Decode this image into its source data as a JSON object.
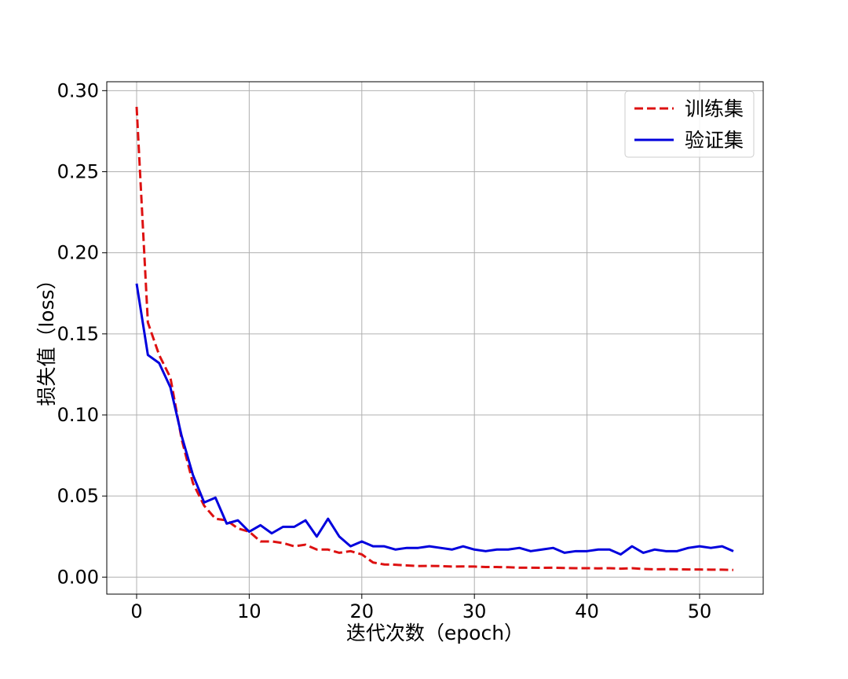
{
  "chart_data": {
    "type": "line",
    "title": "",
    "xlabel": "迭代次数（epoch）",
    "ylabel": "损失值（loss）",
    "xlim": [
      -2.65,
      55.65
    ],
    "ylim": [
      -0.0105,
      0.3055
    ],
    "xticks": [
      "0",
      "10",
      "20",
      "30",
      "40",
      "50"
    ],
    "xtick_values": [
      0,
      10,
      20,
      30,
      40,
      50
    ],
    "yticks": [
      "0.00",
      "0.05",
      "0.10",
      "0.15",
      "0.20",
      "0.25",
      "0.30"
    ],
    "ytick_values": [
      0.0,
      0.05,
      0.1,
      0.15,
      0.2,
      0.25,
      0.3
    ],
    "grid": true,
    "legend_position": "top-right",
    "x": [
      0,
      1,
      2,
      3,
      4,
      5,
      6,
      7,
      8,
      9,
      10,
      11,
      12,
      13,
      14,
      15,
      16,
      17,
      18,
      19,
      20,
      21,
      22,
      23,
      24,
      25,
      26,
      27,
      28,
      29,
      30,
      31,
      32,
      33,
      34,
      35,
      36,
      37,
      38,
      39,
      40,
      41,
      42,
      43,
      44,
      45,
      46,
      47,
      48,
      49,
      50,
      51,
      52,
      53
    ],
    "series": [
      {
        "name": "训练集",
        "color": "#dd1111",
        "style": "dashed",
        "values": [
          0.29,
          0.157,
          0.137,
          0.123,
          0.085,
          0.058,
          0.044,
          0.036,
          0.035,
          0.03,
          0.028,
          0.022,
          0.022,
          0.021,
          0.019,
          0.02,
          0.017,
          0.017,
          0.015,
          0.016,
          0.014,
          0.009,
          0.0078,
          0.0076,
          0.0072,
          0.0068,
          0.0069,
          0.0068,
          0.0065,
          0.0066,
          0.0065,
          0.0062,
          0.0062,
          0.0061,
          0.0058,
          0.0058,
          0.0057,
          0.0058,
          0.0056,
          0.0055,
          0.0055,
          0.0054,
          0.0055,
          0.0052,
          0.0055,
          0.005,
          0.0048,
          0.0049,
          0.0048,
          0.0047,
          0.0047,
          0.0046,
          0.0046,
          0.0044
        ]
      },
      {
        "name": "验证集",
        "color": "#0000dd",
        "style": "solid",
        "values": [
          0.181,
          0.137,
          0.132,
          0.117,
          0.087,
          0.063,
          0.046,
          0.049,
          0.033,
          0.035,
          0.028,
          0.032,
          0.027,
          0.031,
          0.031,
          0.035,
          0.025,
          0.036,
          0.025,
          0.019,
          0.022,
          0.019,
          0.019,
          0.017,
          0.018,
          0.018,
          0.019,
          0.018,
          0.017,
          0.019,
          0.017,
          0.016,
          0.017,
          0.017,
          0.018,
          0.016,
          0.017,
          0.018,
          0.015,
          0.016,
          0.016,
          0.017,
          0.017,
          0.014,
          0.019,
          0.015,
          0.017,
          0.016,
          0.016,
          0.018,
          0.019,
          0.018,
          0.019,
          0.016
        ]
      }
    ]
  }
}
